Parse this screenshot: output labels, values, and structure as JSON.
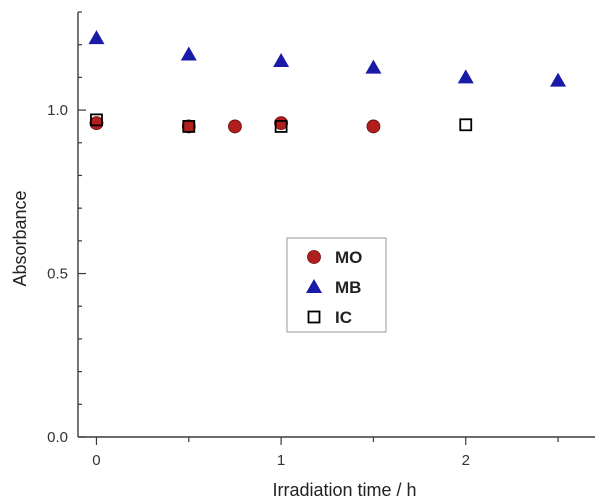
{
  "chart_data": {
    "type": "scatter",
    "xlabel": "Irradiation time / h",
    "ylabel": "Absorbance",
    "xlim": [
      -0.1,
      2.7
    ],
    "ylim": [
      0.0,
      1.3
    ],
    "xticks": [
      0,
      1,
      2
    ],
    "xtick_labels": [
      "0",
      "1",
      "2"
    ],
    "yticks": [
      0.0,
      0.5,
      1.0
    ],
    "ytick_labels": [
      "0.0",
      "0.5",
      "1.0"
    ],
    "grid": false,
    "legend_position": "center",
    "series": [
      {
        "name": "MO",
        "marker": "circle",
        "color": "#b01e1e",
        "x": [
          0,
          0.5,
          0.75,
          1.0,
          1.5
        ],
        "y": [
          0.96,
          0.95,
          0.95,
          0.96,
          0.95
        ]
      },
      {
        "name": "MB",
        "marker": "triangle",
        "color": "#1a1aa8",
        "x": [
          0,
          0.5,
          1.0,
          1.5,
          2.0,
          2.5
        ],
        "y": [
          1.22,
          1.17,
          1.15,
          1.13,
          1.1,
          1.09
        ]
      },
      {
        "name": "IC",
        "marker": "open-square",
        "color": "#000000",
        "x": [
          0,
          0.5,
          1.0,
          2.0
        ],
        "y": [
          0.97,
          0.95,
          0.95,
          0.955
        ]
      }
    ]
  }
}
